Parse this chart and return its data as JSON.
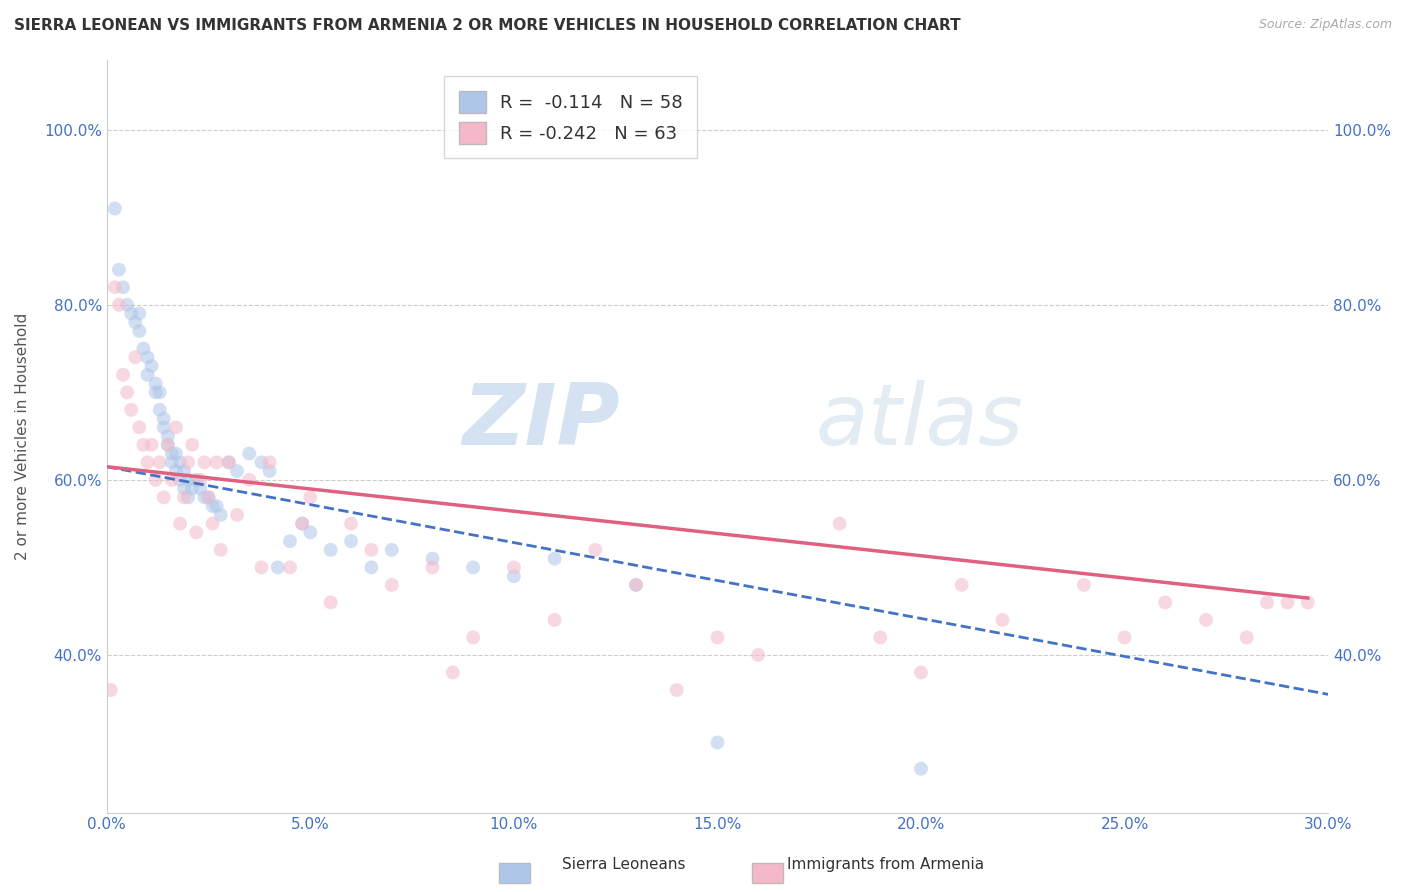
{
  "title": "SIERRA LEONEAN VS IMMIGRANTS FROM ARMENIA 2 OR MORE VEHICLES IN HOUSEHOLD CORRELATION CHART",
  "source": "Source: ZipAtlas.com",
  "ylabel": "2 or more Vehicles in Household",
  "xmin": 0.0,
  "xmax": 0.3,
  "ymin": 0.22,
  "ymax": 1.08,
  "xtick_labels": [
    "0.0%",
    "5.0%",
    "10.0%",
    "15.0%",
    "20.0%",
    "25.0%",
    "30.0%"
  ],
  "xtick_values": [
    0.0,
    0.05,
    0.1,
    0.15,
    0.2,
    0.25,
    0.3
  ],
  "ytick_labels": [
    "40.0%",
    "60.0%",
    "80.0%",
    "100.0%"
  ],
  "ytick_values": [
    0.4,
    0.6,
    0.8,
    1.0
  ],
  "legend_entries": [
    {
      "label": "R =  -0.114   N = 58",
      "color": "#aec6e8"
    },
    {
      "label": "R = -0.242   N = 63",
      "color": "#f4b8c8"
    }
  ],
  "blue_scatter_x": [
    0.002,
    0.003,
    0.004,
    0.005,
    0.006,
    0.007,
    0.008,
    0.008,
    0.009,
    0.01,
    0.01,
    0.011,
    0.012,
    0.012,
    0.013,
    0.013,
    0.014,
    0.014,
    0.015,
    0.015,
    0.016,
    0.016,
    0.017,
    0.017,
    0.018,
    0.018,
    0.019,
    0.019,
    0.02,
    0.02,
    0.021,
    0.022,
    0.023,
    0.024,
    0.025,
    0.026,
    0.027,
    0.028,
    0.03,
    0.032,
    0.035,
    0.038,
    0.04,
    0.042,
    0.045,
    0.048,
    0.05,
    0.055,
    0.06,
    0.065,
    0.07,
    0.08,
    0.09,
    0.1,
    0.11,
    0.13,
    0.15,
    0.2
  ],
  "blue_scatter_y": [
    0.91,
    0.84,
    0.82,
    0.8,
    0.79,
    0.78,
    0.79,
    0.77,
    0.75,
    0.74,
    0.72,
    0.73,
    0.71,
    0.7,
    0.68,
    0.7,
    0.67,
    0.66,
    0.65,
    0.64,
    0.63,
    0.62,
    0.63,
    0.61,
    0.62,
    0.6,
    0.61,
    0.59,
    0.6,
    0.58,
    0.59,
    0.6,
    0.59,
    0.58,
    0.58,
    0.57,
    0.57,
    0.56,
    0.62,
    0.61,
    0.63,
    0.62,
    0.61,
    0.5,
    0.53,
    0.55,
    0.54,
    0.52,
    0.53,
    0.5,
    0.52,
    0.51,
    0.5,
    0.49,
    0.51,
    0.48,
    0.3,
    0.27
  ],
  "pink_scatter_x": [
    0.001,
    0.002,
    0.003,
    0.004,
    0.005,
    0.006,
    0.007,
    0.008,
    0.009,
    0.01,
    0.011,
    0.012,
    0.013,
    0.014,
    0.015,
    0.016,
    0.017,
    0.018,
    0.019,
    0.02,
    0.021,
    0.022,
    0.023,
    0.024,
    0.025,
    0.026,
    0.027,
    0.028,
    0.03,
    0.032,
    0.035,
    0.038,
    0.04,
    0.045,
    0.048,
    0.05,
    0.055,
    0.06,
    0.065,
    0.07,
    0.08,
    0.085,
    0.09,
    0.1,
    0.11,
    0.12,
    0.13,
    0.14,
    0.15,
    0.16,
    0.18,
    0.19,
    0.2,
    0.21,
    0.22,
    0.24,
    0.25,
    0.26,
    0.27,
    0.28,
    0.285,
    0.29,
    0.295
  ],
  "pink_scatter_y": [
    0.36,
    0.82,
    0.8,
    0.72,
    0.7,
    0.68,
    0.74,
    0.66,
    0.64,
    0.62,
    0.64,
    0.6,
    0.62,
    0.58,
    0.64,
    0.6,
    0.66,
    0.55,
    0.58,
    0.62,
    0.64,
    0.54,
    0.6,
    0.62,
    0.58,
    0.55,
    0.62,
    0.52,
    0.62,
    0.56,
    0.6,
    0.5,
    0.62,
    0.5,
    0.55,
    0.58,
    0.46,
    0.55,
    0.52,
    0.48,
    0.5,
    0.38,
    0.42,
    0.5,
    0.44,
    0.52,
    0.48,
    0.36,
    0.42,
    0.4,
    0.55,
    0.42,
    0.38,
    0.48,
    0.44,
    0.48,
    0.42,
    0.46,
    0.44,
    0.42,
    0.46,
    0.46,
    0.46
  ],
  "blue_line_x": [
    0.0,
    0.3
  ],
  "blue_line_y": [
    0.615,
    0.355
  ],
  "pink_line_x": [
    0.0,
    0.295
  ],
  "pink_line_y": [
    0.615,
    0.465
  ],
  "watermark_zip": "ZIP",
  "watermark_atlas": "atlas",
  "blue_color": "#aec6e8",
  "pink_color": "#f4b8c8",
  "blue_line_color": "#4472c4",
  "pink_line_color": "#e06080",
  "scatter_size": 100,
  "scatter_alpha": 0.55,
  "figsize": [
    14.06,
    8.92
  ],
  "dpi": 100
}
